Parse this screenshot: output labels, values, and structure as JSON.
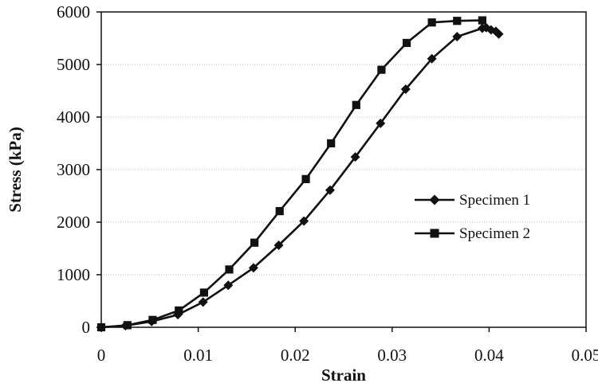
{
  "chart_data": {
    "type": "line",
    "title": "",
    "xlabel": "Strain",
    "ylabel": "Stress (kPa)",
    "xlim": [
      0,
      0.05
    ],
    "ylim": [
      0,
      6000
    ],
    "x_ticks": [
      "0",
      "0.01",
      "0.02",
      "0.03",
      "0.04",
      "0.05"
    ],
    "y_ticks": [
      "0",
      "1000",
      "2000",
      "3000",
      "4000",
      "5000",
      "6000"
    ],
    "grid": "horizontal",
    "legend_position": "right",
    "series": [
      {
        "name": "Specimen 1",
        "marker": "diamond",
        "color": "#111111",
        "x": [
          0.0,
          0.0025,
          0.0052,
          0.0079,
          0.0105,
          0.0131,
          0.0157,
          0.0183,
          0.0209,
          0.0236,
          0.0262,
          0.0288,
          0.0314,
          0.0341,
          0.0367,
          0.0393,
          0.0397,
          0.0402,
          0.0407,
          0.041
        ],
        "y": [
          0,
          30,
          110,
          240,
          480,
          800,
          1130,
          1560,
          2020,
          2610,
          3240,
          3880,
          4530,
          5110,
          5530,
          5690,
          5700,
          5660,
          5630,
          5580
        ]
      },
      {
        "name": "Specimen 2",
        "marker": "square",
        "color": "#111111",
        "x": [
          0.0,
          0.0027,
          0.0053,
          0.008,
          0.0106,
          0.0132,
          0.0158,
          0.0184,
          0.0211,
          0.0237,
          0.0263,
          0.0289,
          0.0315,
          0.0341,
          0.0367,
          0.0393
        ],
        "y": [
          0,
          40,
          140,
          320,
          660,
          1100,
          1610,
          2210,
          2820,
          3500,
          4230,
          4900,
          5410,
          5800,
          5830,
          5840
        ]
      }
    ]
  }
}
